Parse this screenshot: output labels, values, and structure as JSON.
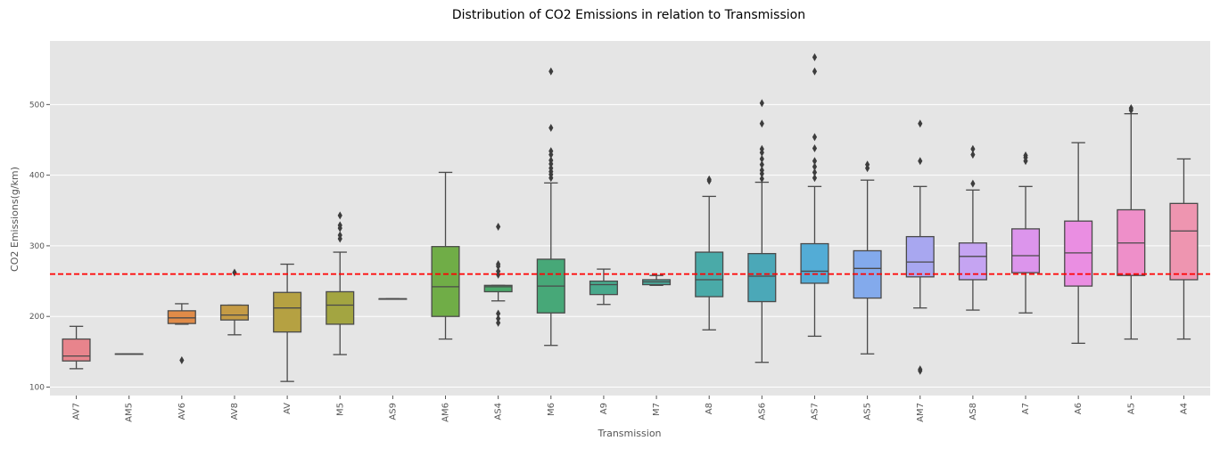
{
  "chart_data": {
    "type": "box",
    "title": "Distribution of CO2 Emissions in relation to Transmission",
    "xlabel": "Transmission",
    "ylabel": "CO2 Emissions(g/km)",
    "ylim": [
      88,
      590
    ],
    "yticks": [
      100,
      200,
      300,
      400,
      500
    ],
    "grid": true,
    "reference_line": {
      "y": 260,
      "color": "#ff0000",
      "style": "dashed"
    },
    "categories": [
      "AV7",
      "AM5",
      "AV6",
      "AV8",
      "AV",
      "M5",
      "AS9",
      "AM6",
      "AS4",
      "M6",
      "A9",
      "M7",
      "A8",
      "AS6",
      "AS7",
      "AS5",
      "AM7",
      "AS8",
      "A7",
      "A6",
      "A5",
      "A4"
    ],
    "boxes": [
      {
        "category": "AV7",
        "min": 126,
        "q1": 137,
        "median": 144,
        "q3": 168,
        "max": 186,
        "outliers": [],
        "color": "#e8848c"
      },
      {
        "category": "AM5",
        "min": 147,
        "q1": 147,
        "median": 147,
        "q3": 147,
        "max": 147,
        "outliers": [],
        "color": "#e38b4a"
      },
      {
        "category": "AV6",
        "min": 189,
        "q1": 190,
        "median": 198,
        "q3": 208,
        "max": 218,
        "outliers": [
          138
        ],
        "color": "#e08b48"
      },
      {
        "category": "AV8",
        "min": 174,
        "q1": 195,
        "median": 202,
        "q3": 216,
        "max": 216,
        "outliers": [
          262
        ],
        "color": "#c59b45"
      },
      {
        "category": "AV",
        "min": 108,
        "q1": 178,
        "median": 212,
        "q3": 234,
        "max": 274,
        "outliers": [],
        "color": "#b5a142"
      },
      {
        "category": "M5",
        "min": 146,
        "q1": 189,
        "median": 216,
        "q3": 235,
        "max": 291,
        "outliers": [
          310,
          315,
          325,
          329,
          343
        ],
        "color": "#a3a541"
      },
      {
        "category": "AS9",
        "min": 225,
        "q1": 225,
        "median": 225,
        "q3": 225,
        "max": 225,
        "outliers": [],
        "color": "#86a843"
      },
      {
        "category": "AM6",
        "min": 168,
        "q1": 200,
        "median": 242,
        "q3": 299,
        "max": 404,
        "outliers": [],
        "color": "#70ad47"
      },
      {
        "category": "AS4",
        "min": 222,
        "q1": 235,
        "median": 242,
        "q3": 244,
        "max": 244,
        "outliers": [
          191,
          197,
          204,
          259,
          264,
          271,
          274,
          327
        ],
        "color": "#4aa86a"
      },
      {
        "category": "M6",
        "min": 159,
        "q1": 205,
        "median": 243,
        "q3": 281,
        "max": 389,
        "outliers": [
          396,
          401,
          405,
          410,
          416,
          421,
          429,
          434,
          467,
          547
        ],
        "color": "#47a878"
      },
      {
        "category": "A9",
        "min": 217,
        "q1": 231,
        "median": 245,
        "q3": 250,
        "max": 267,
        "outliers": [],
        "color": "#48a98c"
      },
      {
        "category": "M7",
        "min": 244,
        "q1": 245,
        "median": 249,
        "q3": 252,
        "max": 258,
        "outliers": [],
        "color": "#49a99a"
      },
      {
        "category": "A8",
        "min": 181,
        "q1": 228,
        "median": 252,
        "q3": 291,
        "max": 370,
        "outliers": [
          392,
          394
        ],
        "color": "#4aaaa8"
      },
      {
        "category": "AS6",
        "min": 135,
        "q1": 221,
        "median": 257,
        "q3": 289,
        "max": 390,
        "outliers": [
          395,
          402,
          407,
          415,
          423,
          432,
          437,
          473,
          502
        ],
        "color": "#4ba8b8"
      },
      {
        "category": "AS7",
        "min": 172,
        "q1": 247,
        "median": 264,
        "q3": 303,
        "max": 384,
        "outliers": [
          396,
          404,
          412,
          420,
          438,
          454,
          547,
          567
        ],
        "color": "#53acd6"
      },
      {
        "category": "AS5",
        "min": 147,
        "q1": 226,
        "median": 268,
        "q3": 293,
        "max": 393,
        "outliers": [
          410,
          415
        ],
        "color": "#83aaec"
      },
      {
        "category": "AM7",
        "min": 212,
        "q1": 256,
        "median": 277,
        "q3": 313,
        "max": 384,
        "outliers": [
          123,
          125,
          420,
          473
        ],
        "color": "#a8a7f0"
      },
      {
        "category": "AS8",
        "min": 209,
        "q1": 252,
        "median": 285,
        "q3": 304,
        "max": 379,
        "outliers": [
          388,
          429,
          437
        ],
        "color": "#c5a4f2"
      },
      {
        "category": "A7",
        "min": 205,
        "q1": 262,
        "median": 286,
        "q3": 324,
        "max": 384,
        "outliers": [
          420,
          425,
          428
        ],
        "color": "#dc95ec"
      },
      {
        "category": "A6",
        "min": 162,
        "q1": 243,
        "median": 290,
        "q3": 335,
        "max": 446,
        "outliers": [],
        "color": "#ea8ee2"
      },
      {
        "category": "A5",
        "min": 168,
        "q1": 258,
        "median": 304,
        "q3": 351,
        "max": 487,
        "outliers": [
          492,
          495
        ],
        "color": "#ee8fc9"
      },
      {
        "category": "A4",
        "min": 168,
        "q1": 252,
        "median": 321,
        "q3": 360,
        "max": 423,
        "outliers": [],
        "color": "#ee95b0"
      }
    ]
  }
}
